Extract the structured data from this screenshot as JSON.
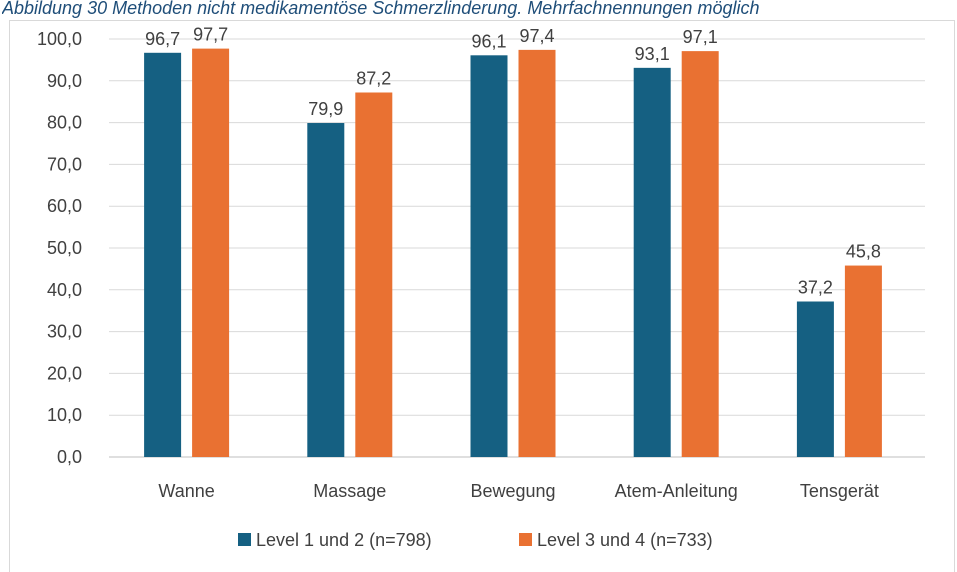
{
  "caption": "Abbildung 30 Methoden nicht medikamentöse Schmerzlinderung. Mehrfachnennungen möglich",
  "chart_data": {
    "type": "bar",
    "categories": [
      "Wanne",
      "Massage",
      "Bewegung",
      "Atem-Anleitung",
      "Tensgerät"
    ],
    "series": [
      {
        "name": "Level 1 und 2 (n=798)",
        "color": "#156082",
        "values": [
          96.7,
          79.9,
          96.1,
          93.1,
          37.2
        ]
      },
      {
        "name": "Level 3 und 4 (n=733)",
        "color": "#e97132",
        "values": [
          97.7,
          87.2,
          97.4,
          97.1,
          45.8
        ]
      }
    ],
    "data_labels": [
      [
        "96,7",
        "79,9",
        "96,1",
        "93,1",
        "37,2"
      ],
      [
        "97,7",
        "87,2",
        "97,4",
        "97,1",
        "45,8"
      ]
    ],
    "y_ticks": [
      "0,0",
      "10,0",
      "20,0",
      "30,0",
      "40,0",
      "50,0",
      "60,0",
      "70,0",
      "80,0",
      "90,0",
      "100,0"
    ],
    "ylim": [
      0,
      100
    ],
    "grid": true,
    "legend_position": "bottom"
  }
}
